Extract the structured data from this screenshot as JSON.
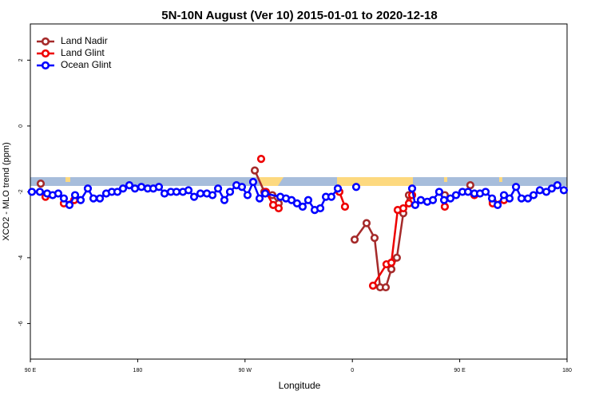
{
  "chart_data": {
    "type": "line",
    "title": "5N-10N August (Ver 10)   2015-01-01 to 2020-12-18",
    "xlabel": "Longitude",
    "ylabel": "XCO2 - MLO trend (ppm)",
    "xlim": [
      90,
      540
    ],
    "xticks": [
      {
        "value": 90,
        "label": "90 E"
      },
      {
        "value": 180,
        "label": "180"
      },
      {
        "value": 270,
        "label": "90 W"
      },
      {
        "value": 360,
        "label": "0"
      },
      {
        "value": 450,
        "label": "90 E"
      },
      {
        "value": 540,
        "label": "180"
      }
    ],
    "ylim": [
      -7.08,
      3.1
    ],
    "yticks": [
      -6,
      -4,
      -2,
      0,
      2
    ],
    "legend": "topleft",
    "series": [
      {
        "name": "Land Nadir",
        "color": "#a52a2a",
        "x": [
          98.7,
          null,
          278.2,
          286.2,
          292.9,
          298.2,
          null,
          361.9,
          371.9,
          378.6,
          383.3,
          388.0,
          392.7,
          397.3,
          402.7,
          407.4,
          null,
          437.5,
          null,
          458.9,
          null,
          477.7
        ],
        "values": [
          -1.75,
          null,
          -1.35,
          -2.0,
          -2.1,
          -2.35,
          null,
          -3.45,
          -2.95,
          -3.4,
          -4.9,
          -4.9,
          -4.35,
          -4.0,
          -2.65,
          -2.1,
          null,
          -2.1,
          null,
          -1.8,
          null,
          -2.3
        ]
      },
      {
        "name": "Land Glint",
        "color": "#ee0000",
        "x": [
          102.7,
          null,
          118.1,
          126.8,
          null,
          283.5,
          null,
          287.5,
          293.6,
          298.2,
          null,
          349.1,
          353.8,
          null,
          377.3,
          388.6,
          392.7,
          398.0,
          402.7,
          407.4,
          410.1,
          null,
          437.5,
          null,
          462.3,
          null,
          477.7,
          487.1
        ],
        "values": [
          -2.15,
          null,
          -2.35,
          -2.25,
          null,
          -1.0,
          null,
          -2.0,
          -2.4,
          -2.5,
          null,
          -2.0,
          -2.45,
          null,
          -4.85,
          -4.2,
          -4.15,
          -2.55,
          -2.5,
          -2.35,
          -2.1,
          null,
          -2.45,
          null,
          -2.1,
          null,
          -2.35,
          -2.25
        ]
      },
      {
        "name": "Ocean Glint",
        "color": "#0000ff",
        "x": [
          91.3,
          98.0,
          104.1,
          108.7,
          113.4,
          118.1,
          122.8,
          127.5,
          132.2,
          138.2,
          142.9,
          148.3,
          153.6,
          158.3,
          163.0,
          167.7,
          173.0,
          177.7,
          183.1,
          188.4,
          193.1,
          197.8,
          202.5,
          207.8,
          212.5,
          217.9,
          222.6,
          227.3,
          232.6,
          238.0,
          242.7,
          247.4,
          252.7,
          257.4,
          262.8,
          267.4,
          272.1,
          276.8,
          282.2,
          286.9,
          299.6,
          304.3,
          309.0,
          313.6,
          318.3,
          323.0,
          328.4,
          333.1,
          337.8,
          342.4,
          347.8,
          null,
          363.2,
          null,
          410.1,
          412.7,
          417.4,
          422.8,
          427.5,
          432.8,
          436.9,
          442.2,
          446.9,
          452.3,
          457.0,
          462.3,
          467.0,
          471.7,
          477.1,
          481.8,
          487.1,
          491.8,
          497.2,
          501.8,
          507.2,
          511.9,
          517.2,
          522.6,
          527.2,
          531.9,
          537.3
        ],
        "values": [
          -2.0,
          -2.0,
          -2.05,
          -2.1,
          -2.05,
          -2.2,
          -2.4,
          -2.1,
          -2.25,
          -1.9,
          -2.2,
          -2.2,
          -2.05,
          -2.0,
          -2.0,
          -1.9,
          -1.8,
          -1.9,
          -1.85,
          -1.9,
          -1.9,
          -1.85,
          -2.05,
          -2.0,
          -2.0,
          -2.0,
          -1.95,
          -2.15,
          -2.05,
          -2.05,
          -2.1,
          -1.9,
          -2.25,
          -2.0,
          -1.8,
          -1.85,
          -2.1,
          -1.7,
          -2.2,
          -2.05,
          -2.15,
          -2.2,
          -2.25,
          -2.35,
          -2.45,
          -2.25,
          -2.55,
          -2.5,
          -2.15,
          -2.15,
          -1.9,
          null,
          -1.85,
          null,
          -1.9,
          -2.4,
          -2.25,
          -2.3,
          -2.25,
          -2.0,
          -2.25,
          -2.2,
          -2.1,
          -2.0,
          -2.0,
          -2.05,
          -2.05,
          -2.0,
          -2.2,
          -2.4,
          -2.1,
          -2.2,
          -1.85,
          -2.2,
          -2.2,
          -2.1,
          -1.95,
          -2.0,
          -1.9,
          -1.8,
          -1.95
        ]
      }
    ]
  }
}
